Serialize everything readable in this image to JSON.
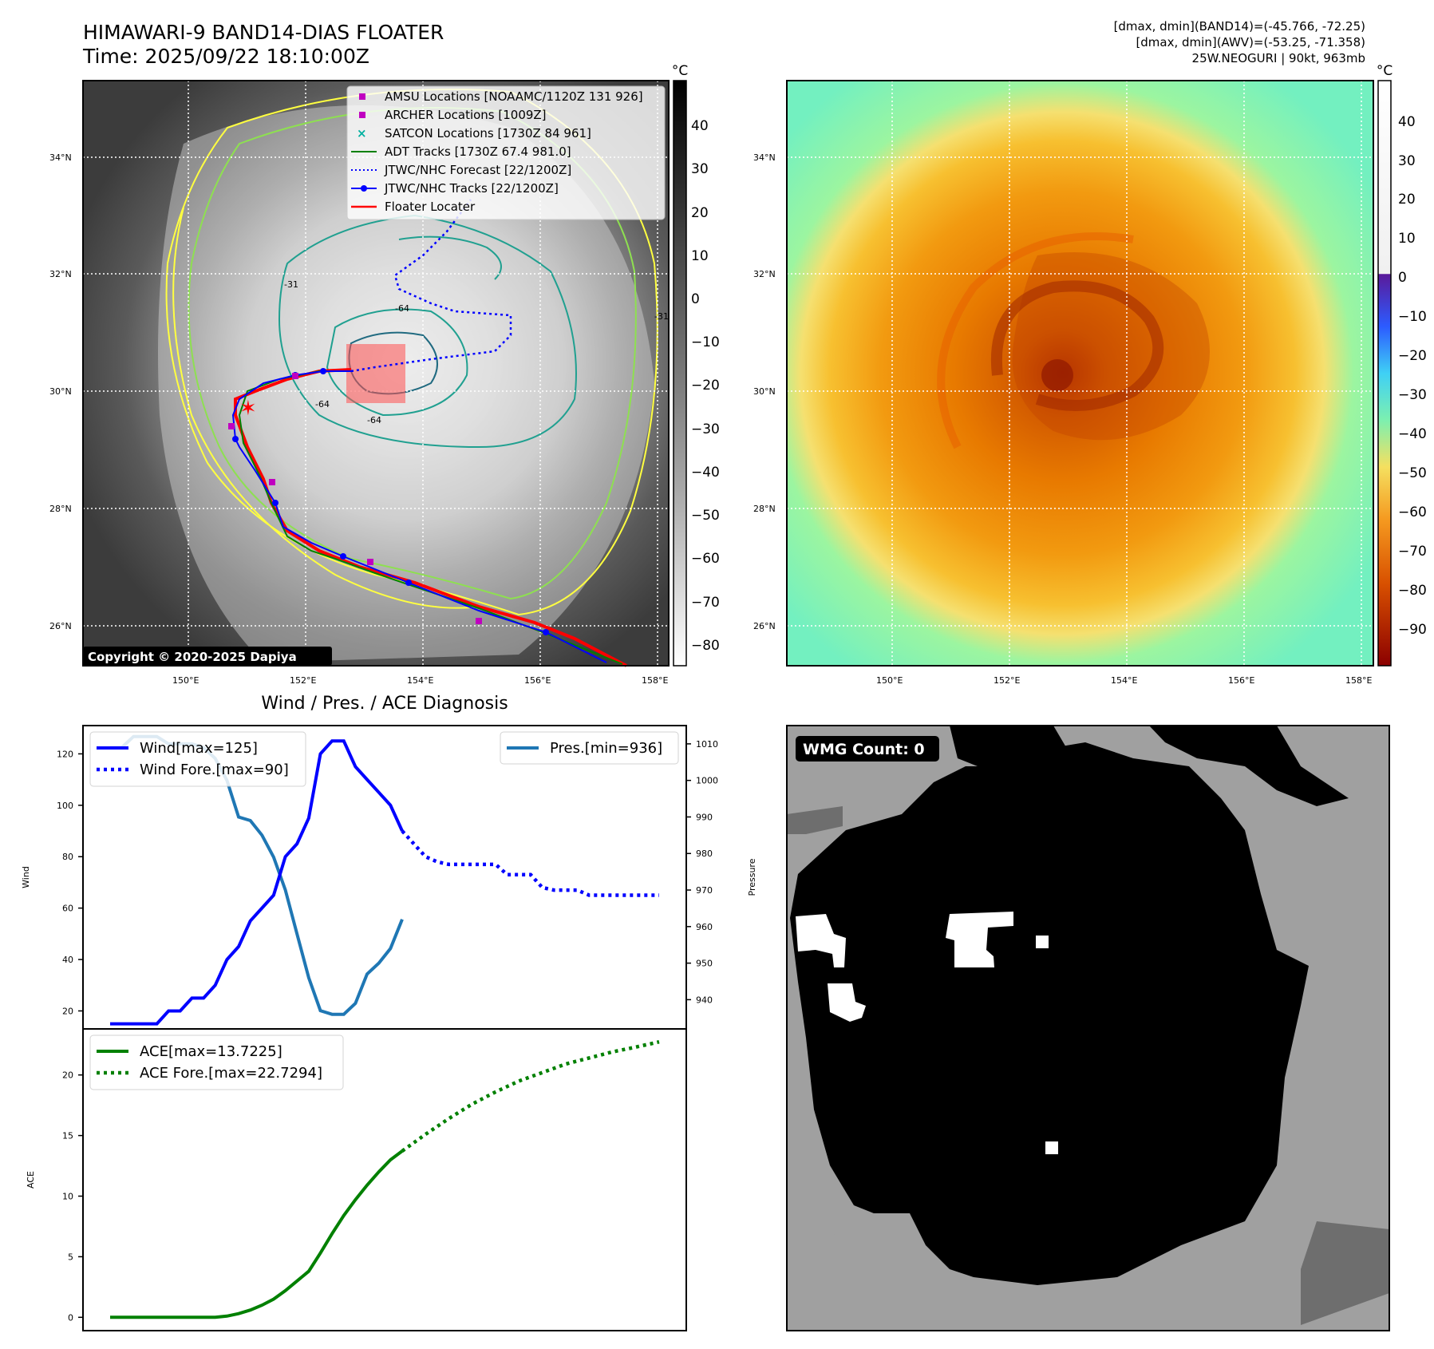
{
  "header": {
    "title_line1": "HIMAWARI-9 BAND14-DIAS FLOATER",
    "title_line2": "Time: 2025/09/22 18:10:00Z",
    "info_line1": "[dmax, dmin](BAND14)=(-45.766, -72.25)",
    "info_line2": "[dmax, dmin](AWV)=(-53.25, -71.358)",
    "info_line3": "25W.NEOGURI | 90kt, 963mb"
  },
  "maps": {
    "lat_ticks": [
      "34°N",
      "32°N",
      "30°N",
      "28°N",
      "26°N"
    ],
    "lon_ticks": [
      "150°E",
      "152°E",
      "154°E",
      "156°E",
      "158°E"
    ],
    "copyright": "Copyright © 2020-2025 Dapiya",
    "colorbar_unit": "°C",
    "gray_colorbar_ticks": [
      "40",
      "30",
      "20",
      "10",
      "0",
      "−10",
      "−20",
      "−30",
      "−40",
      "−50",
      "−60",
      "−70",
      "−80"
    ],
    "color_colorbar_ticks": [
      "40",
      "30",
      "20",
      "10",
      "0",
      "−10",
      "−20",
      "−30",
      "−40",
      "−50",
      "−60",
      "−70",
      "−80",
      "−90"
    ],
    "contour_labels": [
      "-31",
      "-64",
      "-64",
      "-64",
      "-31"
    ],
    "legend": [
      {
        "label": "AMSU Locations [NOAAMC/1120Z 131 926]",
        "color": "#c000c0"
      },
      {
        "label": "ARCHER Locations [1009Z]",
        "color": "#c000c0"
      },
      {
        "label": "SATCON Locations [1730Z 84 961]",
        "color": "#00b0a0"
      },
      {
        "label": "ADT Tracks [1730Z 67.4 981.0]",
        "color": "#008000"
      },
      {
        "label": "JTWC/NHC Forecast [22/1200Z]",
        "color": "#0000ff"
      },
      {
        "label": "JTWC/NHC Tracks [22/1200Z]",
        "color": "#0000ff"
      },
      {
        "label": "Floater Locater",
        "color": "#ff0000"
      }
    ]
  },
  "diagnosis": {
    "title": "Wind / Pres. / ACE Diagnosis",
    "wind_axis_label": "Wind",
    "pressure_axis_label": "Pressure",
    "ace_axis_label": "ACE",
    "wmg_label": "WMG Count: 0"
  },
  "chart_data": [
    {
      "type": "line",
      "title": "Wind / Pres. / ACE Diagnosis",
      "ylabel": "Wind",
      "y2label": "Pressure",
      "ylim": [
        13,
        131
      ],
      "y2lim": [
        932,
        1015
      ],
      "yticks": [
        20,
        40,
        60,
        80,
        100,
        120
      ],
      "y2ticks": [
        940,
        950,
        960,
        970,
        980,
        990,
        1000,
        1010
      ],
      "xlim": [
        0,
        47
      ],
      "series": [
        {
          "name": "Wind[max=125]",
          "color": "#0000ff",
          "style": "solid",
          "x": [
            0,
            1,
            2,
            3,
            4,
            5,
            6,
            7,
            8,
            9,
            10,
            11,
            12,
            13,
            14,
            15,
            16,
            17,
            18,
            19,
            20,
            21,
            22,
            23,
            24,
            25
          ],
          "values": [
            15,
            15,
            15,
            15,
            15,
            20,
            20,
            25,
            25,
            30,
            40,
            45,
            55,
            60,
            65,
            80,
            85,
            95,
            120,
            125,
            125,
            115,
            110,
            105,
            100,
            90
          ]
        },
        {
          "name": "Wind Fore.[max=90]",
          "color": "#0000ff",
          "style": "dotted",
          "x": [
            25,
            26,
            27,
            28,
            29,
            30,
            31,
            32,
            33,
            34,
            35,
            36,
            37,
            38,
            39,
            40,
            41,
            42,
            43,
            44,
            45,
            46,
            47
          ],
          "values": [
            90,
            85,
            80,
            78,
            77,
            77,
            77,
            77,
            77,
            73,
            73,
            73,
            68,
            67,
            67,
            67,
            65,
            65,
            65,
            65,
            65,
            65,
            65
          ]
        },
        {
          "name": "Pres.[min=936]",
          "color": "#1f77b4",
          "style": "solid",
          "axis": "right",
          "x": [
            0,
            1,
            2,
            3,
            4,
            5,
            6,
            7,
            8,
            9,
            10,
            11,
            12,
            13,
            14,
            15,
            16,
            17,
            18,
            19,
            20,
            21,
            22,
            23,
            24,
            25
          ],
          "values": [
            1009,
            1009,
            1012,
            1012,
            1012,
            1010,
            1010,
            1010,
            1009,
            1006,
            1000,
            990,
            989,
            985,
            979,
            970,
            958,
            946,
            937,
            936,
            936,
            939,
            947,
            950,
            954,
            962
          ]
        }
      ]
    },
    {
      "type": "line",
      "ylabel": "ACE",
      "ylim": [
        -1.1,
        23.8
      ],
      "yticks": [
        0,
        5,
        10,
        15,
        20
      ],
      "xlim": [
        0,
        47
      ],
      "series": [
        {
          "name": "ACE[max=13.7225]",
          "color": "#008000",
          "style": "solid",
          "x": [
            0,
            2,
            4,
            6,
            8,
            9,
            10,
            11,
            12,
            13,
            14,
            15,
            16,
            17,
            18,
            19,
            20,
            21,
            22,
            23,
            24,
            25
          ],
          "values": [
            0,
            0,
            0,
            0,
            0,
            0,
            0.1,
            0.3,
            0.6,
            1.0,
            1.5,
            2.2,
            3.0,
            3.8,
            5.3,
            6.9,
            8.4,
            9.7,
            10.9,
            12.0,
            13.0,
            13.72
          ]
        },
        {
          "name": "ACE Fore.[max=22.7294]",
          "color": "#008000",
          "style": "dotted",
          "x": [
            25,
            27,
            29,
            31,
            33,
            35,
            37,
            39,
            41,
            43,
            45,
            47
          ],
          "values": [
            13.72,
            15.1,
            16.4,
            17.6,
            18.6,
            19.5,
            20.2,
            20.9,
            21.4,
            21.9,
            22.3,
            22.73
          ]
        }
      ]
    }
  ]
}
